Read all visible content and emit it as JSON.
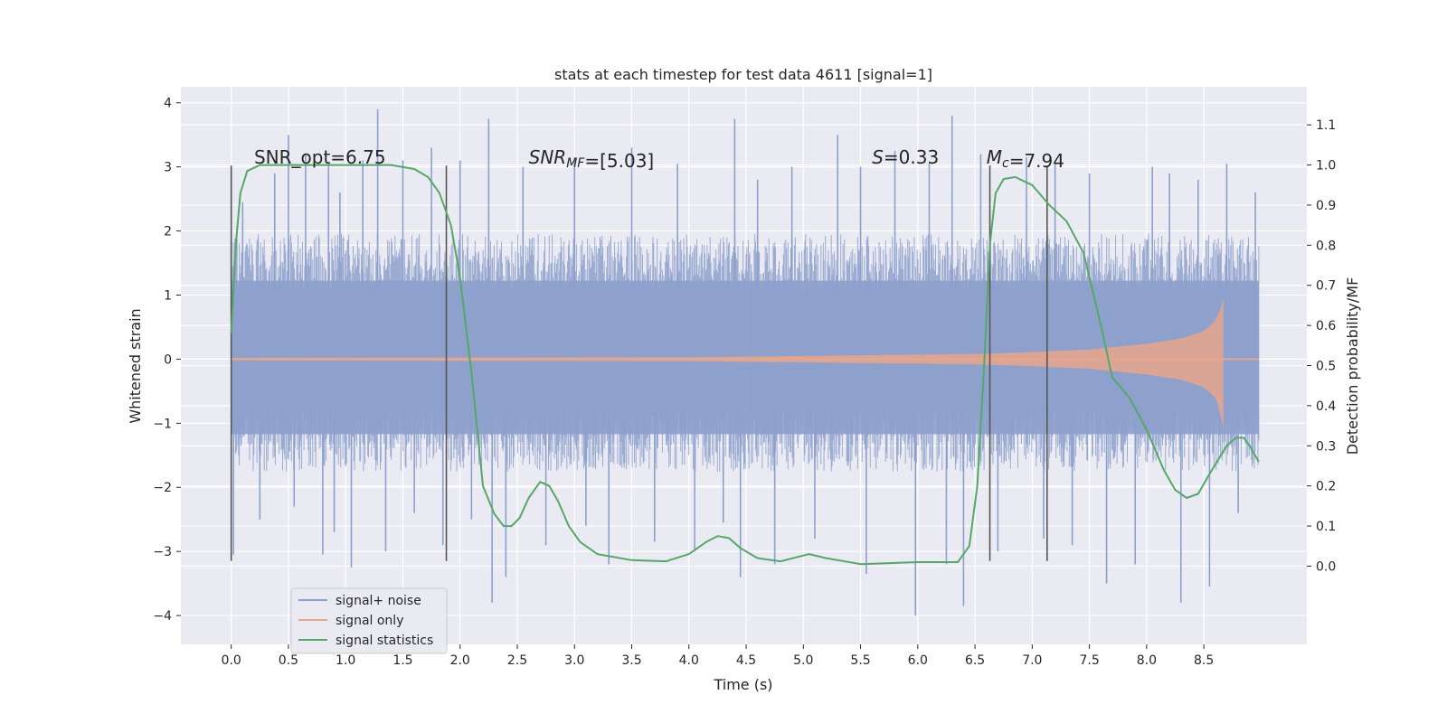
{
  "chart_data": {
    "type": "line",
    "title": "stats at each timestep for test data 4611 [signal=1]",
    "xlabel": "Time (s)",
    "ylabel": "Whitened strain",
    "y2label": "Detection probability/MF",
    "xlim": [
      -0.44,
      9.4
    ],
    "ylim": [
      -4.45,
      4.25
    ],
    "y2lim": [
      -0.195,
      1.195
    ],
    "xticks": [
      0.0,
      0.5,
      1.0,
      1.5,
      2.0,
      2.5,
      3.0,
      3.5,
      4.0,
      4.5,
      5.0,
      5.5,
      6.0,
      6.5,
      7.0,
      7.5,
      8.0,
      8.5
    ],
    "xtick_labels": [
      "0.0",
      "0.5",
      "1.0",
      "1.5",
      "2.0",
      "2.5",
      "3.0",
      "3.5",
      "4.0",
      "4.5",
      "5.0",
      "5.5",
      "6.0",
      "6.5",
      "7.0",
      "7.5",
      "8.0",
      "8.5"
    ],
    "yticks": [
      4,
      3,
      2,
      1,
      0,
      -1,
      -2,
      -3,
      -4
    ],
    "ytick_labels": [
      "4",
      "3",
      "2",
      "1",
      "0",
      "−1",
      "−2",
      "−3",
      "−4"
    ],
    "y2ticks": [
      1.1,
      1.0,
      0.9,
      0.8,
      0.7,
      0.6,
      0.5,
      0.4,
      0.3,
      0.2,
      0.1,
      0.0
    ],
    "y2tick_labels": [
      "1.1",
      "1.0",
      "0.9",
      "0.8",
      "0.7",
      "0.6",
      "0.5",
      "0.4",
      "0.3",
      "0.2",
      "0.1",
      "0.0"
    ],
    "grid": true,
    "legend": {
      "placement": "lower-left",
      "entries": [
        "signal+ noise",
        "signal only",
        "signal statistics"
      ]
    },
    "colors": {
      "background": "#eaeaf2",
      "grid": "#ffffff",
      "noise": "#8da0cb",
      "signal": "#e8a68a",
      "stats": "#55a868",
      "vline": "#555555"
    },
    "annotations": [
      {
        "x": 0.2,
        "y": 3.05,
        "parts": [
          {
            "t": "SNR_opt=6.75",
            "i": false
          }
        ]
      },
      {
        "x": 2.6,
        "y": 3.05,
        "parts": [
          {
            "t": "SNR",
            "i": true
          },
          {
            "t": "MF",
            "i": true,
            "sub": true
          },
          {
            "t": "=[5.03]",
            "i": false
          }
        ]
      },
      {
        "x": 5.6,
        "y": 3.05,
        "parts": [
          {
            "t": "S",
            "i": true
          },
          {
            "t": "=0.33",
            "i": false
          }
        ]
      },
      {
        "x": 6.6,
        "y": 3.05,
        "parts": [
          {
            "t": "M",
            "i": true
          },
          {
            "t": "c",
            "i": true,
            "sub": true
          },
          {
            "t": "=7.94",
            "i": false
          }
        ]
      }
    ],
    "vlines": {
      "x": [
        0.0,
        1.88,
        6.63,
        7.13
      ],
      "ymin": -3.15,
      "ymax": 3.02
    },
    "series": [
      {
        "name": "signal+ noise",
        "axis": "left",
        "style": "noise-band",
        "x_range": [
          0.0,
          8.98
        ],
        "typical_envelope": [
          -1.3,
          1.7
        ],
        "spikes": [
          {
            "x": 0.0,
            "y": 1.85
          },
          {
            "x": 0.02,
            "y": -3.05
          },
          {
            "x": 0.1,
            "y": 2.45
          },
          {
            "x": 0.25,
            "y": -2.5
          },
          {
            "x": 0.38,
            "y": 2.9
          },
          {
            "x": 0.5,
            "y": 3.5
          },
          {
            "x": 0.55,
            "y": -2.3
          },
          {
            "x": 0.65,
            "y": 3.2
          },
          {
            "x": 0.8,
            "y": -3.05
          },
          {
            "x": 0.85,
            "y": 3.05
          },
          {
            "x": 0.9,
            "y": -2.7
          },
          {
            "x": 0.95,
            "y": 2.6
          },
          {
            "x": 1.05,
            "y": -3.25
          },
          {
            "x": 1.15,
            "y": 3.1
          },
          {
            "x": 1.28,
            "y": 3.9
          },
          {
            "x": 1.35,
            "y": -3.0
          },
          {
            "x": 1.5,
            "y": 3.1
          },
          {
            "x": 1.6,
            "y": -2.4
          },
          {
            "x": 1.75,
            "y": 3.3
          },
          {
            "x": 1.85,
            "y": -2.9
          },
          {
            "x": 2.0,
            "y": 3.1
          },
          {
            "x": 2.1,
            "y": -2.5
          },
          {
            "x": 2.25,
            "y": 3.75
          },
          {
            "x": 2.28,
            "y": -3.8
          },
          {
            "x": 2.4,
            "y": -3.4
          },
          {
            "x": 2.55,
            "y": 3.0
          },
          {
            "x": 2.75,
            "y": -2.9
          },
          {
            "x": 3.0,
            "y": 3.15
          },
          {
            "x": 3.1,
            "y": -2.6
          },
          {
            "x": 3.3,
            "y": -3.2
          },
          {
            "x": 3.5,
            "y": 3.3
          },
          {
            "x": 3.7,
            "y": -2.85
          },
          {
            "x": 3.9,
            "y": 3.05
          },
          {
            "x": 4.05,
            "y": -3.0
          },
          {
            "x": 4.3,
            "y": -2.55
          },
          {
            "x": 4.4,
            "y": 3.75
          },
          {
            "x": 4.45,
            "y": -3.4
          },
          {
            "x": 4.6,
            "y": 2.8
          },
          {
            "x": 4.75,
            "y": -3.2
          },
          {
            "x": 4.9,
            "y": 3.0
          },
          {
            "x": 5.1,
            "y": -2.8
          },
          {
            "x": 5.3,
            "y": 3.5
          },
          {
            "x": 5.5,
            "y": 3.0
          },
          {
            "x": 5.55,
            "y": -3.35
          },
          {
            "x": 5.8,
            "y": 3.25
          },
          {
            "x": 5.98,
            "y": -4.0
          },
          {
            "x": 6.1,
            "y": 3.05
          },
          {
            "x": 6.25,
            "y": -3.2
          },
          {
            "x": 6.3,
            "y": 3.8
          },
          {
            "x": 6.4,
            "y": -3.85
          },
          {
            "x": 6.55,
            "y": 3.2
          },
          {
            "x": 6.7,
            "y": -3.0
          },
          {
            "x": 6.95,
            "y": 3.15
          },
          {
            "x": 7.1,
            "y": -2.8
          },
          {
            "x": 7.2,
            "y": 3.05
          },
          {
            "x": 7.35,
            "y": -2.9
          },
          {
            "x": 7.5,
            "y": 2.9
          },
          {
            "x": 7.65,
            "y": -3.5
          },
          {
            "x": 7.9,
            "y": -3.2
          },
          {
            "x": 8.05,
            "y": 3.0
          },
          {
            "x": 8.2,
            "y": 2.9
          },
          {
            "x": 8.3,
            "y": -3.8
          },
          {
            "x": 8.45,
            "y": 2.8
          },
          {
            "x": 8.55,
            "y": -3.55
          },
          {
            "x": 8.7,
            "y": 3.05
          },
          {
            "x": 8.8,
            "y": -2.4
          },
          {
            "x": 8.95,
            "y": 2.6
          }
        ]
      },
      {
        "name": "signal only",
        "axis": "left",
        "style": "chirp",
        "x_range": [
          0.0,
          8.98
        ],
        "peak_time": 8.67,
        "envelope": [
          {
            "x": 0.0,
            "y": 0.02
          },
          {
            "x": 4.0,
            "y": 0.03
          },
          {
            "x": 5.0,
            "y": 0.05
          },
          {
            "x": 6.0,
            "y": 0.07
          },
          {
            "x": 6.5,
            "y": 0.08
          },
          {
            "x": 7.0,
            "y": 0.11
          },
          {
            "x": 7.5,
            "y": 0.15
          },
          {
            "x": 8.0,
            "y": 0.24
          },
          {
            "x": 8.3,
            "y": 0.32
          },
          {
            "x": 8.5,
            "y": 0.44
          },
          {
            "x": 8.6,
            "y": 0.6
          },
          {
            "x": 8.65,
            "y": 0.8
          },
          {
            "x": 8.67,
            "y": 0.95
          },
          {
            "x": 8.7,
            "y": 0.02
          },
          {
            "x": 8.98,
            "y": 0.02
          }
        ],
        "min_value": -1.05
      },
      {
        "name": "signal statistics",
        "axis": "right",
        "style": "line",
        "points": [
          {
            "x": 0.0,
            "y": 0.58
          },
          {
            "x": 0.04,
            "y": 0.8
          },
          {
            "x": 0.08,
            "y": 0.93
          },
          {
            "x": 0.14,
            "y": 0.985
          },
          {
            "x": 0.25,
            "y": 1.0
          },
          {
            "x": 1.0,
            "y": 1.0
          },
          {
            "x": 1.4,
            "y": 1.0
          },
          {
            "x": 1.6,
            "y": 0.99
          },
          {
            "x": 1.72,
            "y": 0.97
          },
          {
            "x": 1.82,
            "y": 0.93
          },
          {
            "x": 1.92,
            "y": 0.85
          },
          {
            "x": 2.0,
            "y": 0.72
          },
          {
            "x": 2.1,
            "y": 0.48
          },
          {
            "x": 2.2,
            "y": 0.2
          },
          {
            "x": 2.3,
            "y": 0.13
          },
          {
            "x": 2.38,
            "y": 0.1
          },
          {
            "x": 2.45,
            "y": 0.1
          },
          {
            "x": 2.52,
            "y": 0.12
          },
          {
            "x": 2.6,
            "y": 0.17
          },
          {
            "x": 2.7,
            "y": 0.21
          },
          {
            "x": 2.78,
            "y": 0.2
          },
          {
            "x": 2.86,
            "y": 0.16
          },
          {
            "x": 2.95,
            "y": 0.1
          },
          {
            "x": 3.05,
            "y": 0.06
          },
          {
            "x": 3.2,
            "y": 0.03
          },
          {
            "x": 3.5,
            "y": 0.015
          },
          {
            "x": 3.8,
            "y": 0.012
          },
          {
            "x": 4.0,
            "y": 0.03
          },
          {
            "x": 4.15,
            "y": 0.06
          },
          {
            "x": 4.25,
            "y": 0.075
          },
          {
            "x": 4.35,
            "y": 0.07
          },
          {
            "x": 4.45,
            "y": 0.045
          },
          {
            "x": 4.6,
            "y": 0.02
          },
          {
            "x": 4.8,
            "y": 0.012
          },
          {
            "x": 5.05,
            "y": 0.03
          },
          {
            "x": 5.2,
            "y": 0.02
          },
          {
            "x": 5.5,
            "y": 0.005
          },
          {
            "x": 6.0,
            "y": 0.01
          },
          {
            "x": 6.35,
            "y": 0.01
          },
          {
            "x": 6.45,
            "y": 0.05
          },
          {
            "x": 6.52,
            "y": 0.2
          },
          {
            "x": 6.58,
            "y": 0.5
          },
          {
            "x": 6.63,
            "y": 0.8
          },
          {
            "x": 6.68,
            "y": 0.93
          },
          {
            "x": 6.75,
            "y": 0.965
          },
          {
            "x": 6.85,
            "y": 0.97
          },
          {
            "x": 7.0,
            "y": 0.95
          },
          {
            "x": 7.15,
            "y": 0.9
          },
          {
            "x": 7.3,
            "y": 0.86
          },
          {
            "x": 7.45,
            "y": 0.78
          },
          {
            "x": 7.6,
            "y": 0.6
          },
          {
            "x": 7.7,
            "y": 0.47
          },
          {
            "x": 7.85,
            "y": 0.42
          },
          {
            "x": 8.0,
            "y": 0.34
          },
          {
            "x": 8.15,
            "y": 0.24
          },
          {
            "x": 8.25,
            "y": 0.19
          },
          {
            "x": 8.35,
            "y": 0.17
          },
          {
            "x": 8.45,
            "y": 0.18
          },
          {
            "x": 8.55,
            "y": 0.23
          },
          {
            "x": 8.7,
            "y": 0.3
          },
          {
            "x": 8.78,
            "y": 0.32
          },
          {
            "x": 8.85,
            "y": 0.32
          },
          {
            "x": 8.9,
            "y": 0.3
          },
          {
            "x": 8.98,
            "y": 0.26
          }
        ]
      }
    ]
  }
}
